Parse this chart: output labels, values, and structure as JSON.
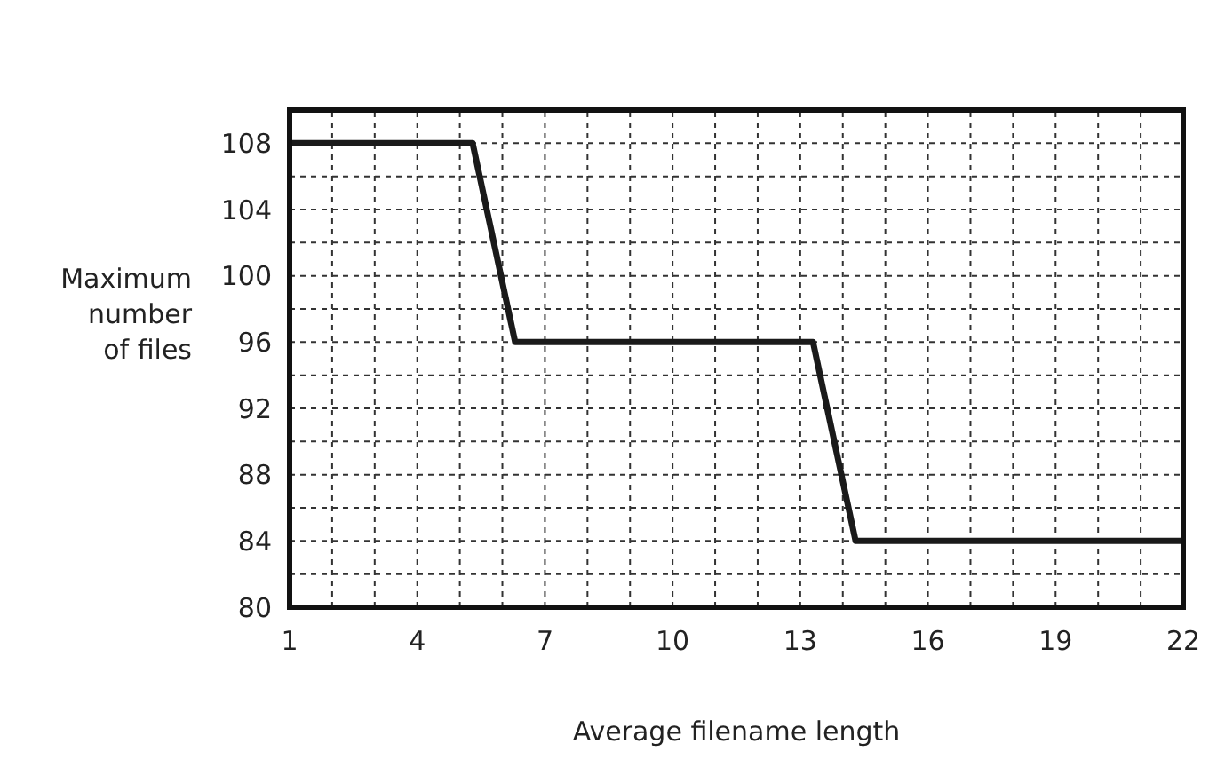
{
  "chart_data": {
    "type": "line",
    "xlabel": "Average filename length",
    "ylabel": "Maximum number of files",
    "x": [
      1,
      5.3,
      6.3,
      13.3,
      14.3,
      22
    ],
    "series": [
      {
        "color": "#1a1a1a",
        "values": [
          108,
          108,
          96,
          96,
          84,
          84
        ]
      }
    ],
    "xlim": [
      1,
      22
    ],
    "xticks": [
      1,
      {
        "value": 2,
        "label": null
      },
      {
        "value": 3,
        "label": null
      },
      4,
      {
        "value": 5,
        "label": null
      },
      {
        "value": 6,
        "label": null
      },
      7,
      {
        "value": 8,
        "label": null
      },
      {
        "value": 9,
        "label": null
      },
      10,
      {
        "value": 11,
        "label": null
      },
      {
        "value": 12,
        "label": null
      },
      13,
      {
        "value": 14,
        "label": null
      },
      {
        "value": 15,
        "label": null
      },
      16,
      {
        "value": 17,
        "label": null
      },
      {
        "value": 18,
        "label": null
      },
      19,
      {
        "value": 20,
        "label": null
      },
      {
        "value": 21,
        "label": null
      },
      22
    ],
    "ylim": [
      80,
      110
    ],
    "yticks": [
      80,
      {
        "value": 82,
        "label": null
      },
      84,
      {
        "value": 86,
        "label": null
      },
      88,
      {
        "value": 90,
        "label": null
      },
      92,
      {
        "value": 94,
        "label": null
      },
      96,
      {
        "value": 98,
        "label": null
      },
      100,
      {
        "value": 102,
        "label": null
      },
      104,
      {
        "value": 106,
        "label": null
      },
      108
    ],
    "grid": true,
    "marker": "none",
    "line_style": "solid"
  }
}
